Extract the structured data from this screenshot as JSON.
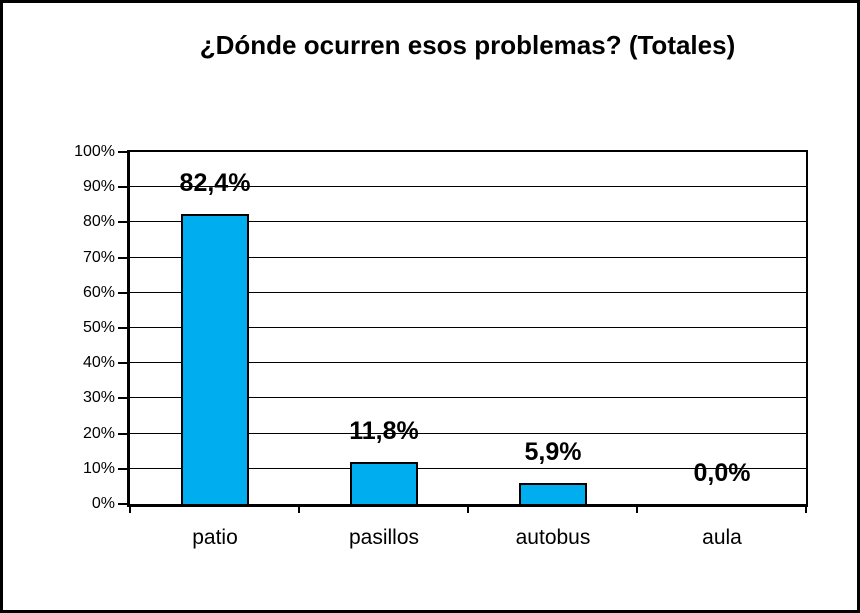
{
  "chart_data": {
    "type": "bar",
    "title": "¿Dónde ocurren esos problemas? (Totales)",
    "categories": [
      "patio",
      "pasillos",
      "autobus",
      "aula"
    ],
    "values": [
      82.4,
      11.8,
      5.9,
      0.0
    ],
    "value_labels": [
      "82,4%",
      "11,8%",
      "5,9%",
      "0,0%"
    ],
    "y_tick_labels": [
      "100%",
      "90%",
      "80%",
      "70%",
      "60%",
      "50%",
      "40%",
      "30%",
      "20%",
      "10%",
      "0%"
    ],
    "ylim": [
      0,
      100
    ],
    "grid": true,
    "legend": "none",
    "bar_color": "#00AEEF",
    "bar_border_color": "#000000",
    "text_color": "#000000",
    "background_color": "#FFFFFF",
    "xlabel": "",
    "ylabel": ""
  }
}
